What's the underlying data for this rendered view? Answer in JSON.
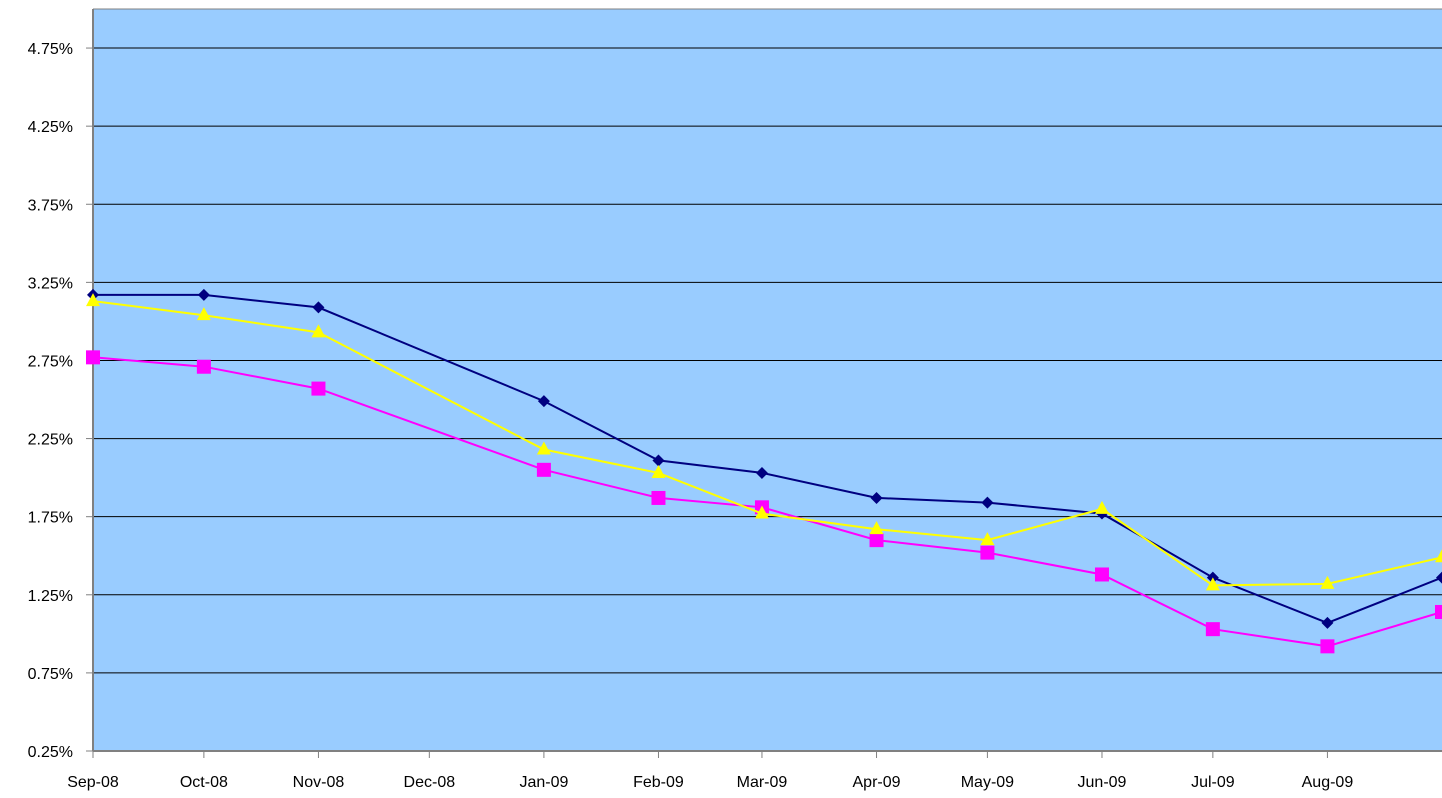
{
  "chart_data": {
    "type": "line",
    "title": "",
    "xlabel": "",
    "ylabel": "",
    "x_tick_labels": [
      "Sep-08",
      "Oct-08",
      "Nov-08",
      "Dec-08",
      "Jan-09",
      "Feb-09",
      "Mar-09",
      "Apr-09",
      "May-09",
      "Jun-09",
      "Jul-09",
      "Aug-09"
    ],
    "y_tick_labels": [
      "0.25%",
      "0.75%",
      "1.25%",
      "1.75%",
      "2.25%",
      "2.75%",
      "3.25%",
      "3.75%",
      "4.25%",
      "4.75%"
    ],
    "xlim": [
      "2008-09-01",
      "2009-09-01"
    ],
    "ylim": [
      0.25,
      5.0
    ],
    "grid": "horizontal",
    "legend": "none",
    "plot_background": "#99ccff",
    "series": [
      {
        "color": "#000080",
        "marker": "diamond",
        "points": [
          {
            "date": "2008-09-01",
            "value": 3.17
          },
          {
            "date": "2008-10-01",
            "value": 3.17
          },
          {
            "date": "2008-11-01",
            "value": 3.09
          },
          {
            "date": "2009-01-01",
            "value": 2.49
          },
          {
            "date": "2009-02-01",
            "value": 2.11
          },
          {
            "date": "2009-03-01",
            "value": 2.03
          },
          {
            "date": "2009-04-01",
            "value": 1.87
          },
          {
            "date": "2009-05-01",
            "value": 1.84
          },
          {
            "date": "2009-06-01",
            "value": 1.77
          },
          {
            "date": "2009-07-01",
            "value": 1.36
          },
          {
            "date": "2009-08-01",
            "value": 1.07
          },
          {
            "date": "2009-09-01",
            "value": 1.36
          }
        ]
      },
      {
        "color": "#ff00ff",
        "marker": "square",
        "points": [
          {
            "date": "2008-09-01",
            "value": 2.77
          },
          {
            "date": "2008-10-01",
            "value": 2.71
          },
          {
            "date": "2008-11-01",
            "value": 2.57
          },
          {
            "date": "2009-01-01",
            "value": 2.05
          },
          {
            "date": "2009-02-01",
            "value": 1.87
          },
          {
            "date": "2009-03-01",
            "value": 1.81
          },
          {
            "date": "2009-04-01",
            "value": 1.6
          },
          {
            "date": "2009-05-01",
            "value": 1.52
          },
          {
            "date": "2009-06-01",
            "value": 1.38
          },
          {
            "date": "2009-07-01",
            "value": 1.03
          },
          {
            "date": "2009-08-01",
            "value": 0.92
          },
          {
            "date": "2009-09-01",
            "value": 1.14
          }
        ]
      },
      {
        "color": "#ffff00",
        "marker": "triangle",
        "points": [
          {
            "date": "2008-09-01",
            "value": 3.13
          },
          {
            "date": "2008-10-01",
            "value": 3.04
          },
          {
            "date": "2008-11-01",
            "value": 2.93
          },
          {
            "date": "2009-01-01",
            "value": 2.18
          },
          {
            "date": "2009-02-01",
            "value": 2.03
          },
          {
            "date": "2009-03-01",
            "value": 1.77
          },
          {
            "date": "2009-04-01",
            "value": 1.67
          },
          {
            "date": "2009-05-01",
            "value": 1.6
          },
          {
            "date": "2009-06-01",
            "value": 1.8
          },
          {
            "date": "2009-07-01",
            "value": 1.31
          },
          {
            "date": "2009-08-01",
            "value": 1.32
          },
          {
            "date": "2009-09-01",
            "value": 1.49
          }
        ]
      }
    ]
  }
}
